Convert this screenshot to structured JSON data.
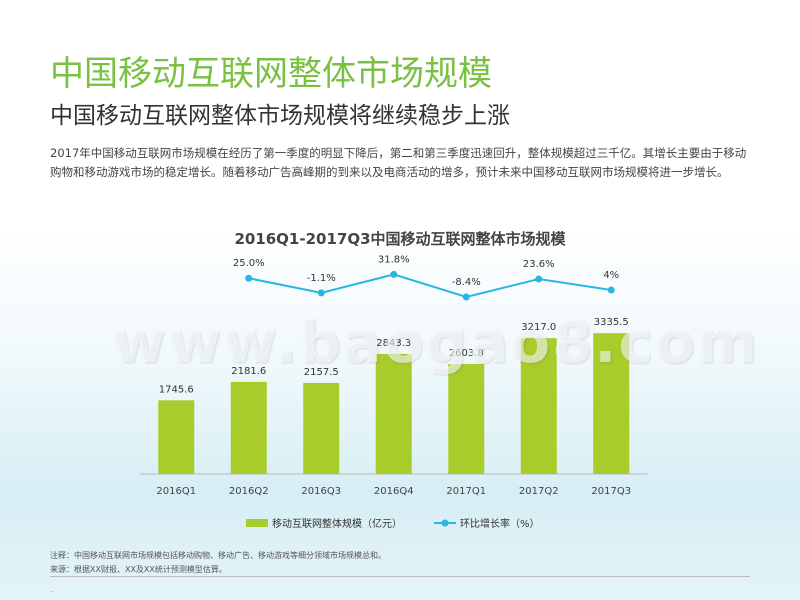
{
  "header": {
    "title": "中国移动互联网整体市场规模",
    "subtitle": "中国移动互联网整体市场规模将继续稳步上涨",
    "description": "2017年中国移动互联网市场规模在经历了第一季度的明显下降后，第二和第三季度迅速回升，整体规模超过三千亿。其增长主要由于移动购物和移动游戏市场的稳定增长。随着移动广告高峰期的到来以及电商活动的增多，预计未来中国移动互联网市场规模将进一步增长。"
  },
  "watermark": "www.baogao8.com",
  "chart_data": {
    "type": "bar+line",
    "title": "2016Q1-2017Q3中国移动互联网整体市场规模",
    "categories": [
      "2016Q1",
      "2016Q2",
      "2016Q3",
      "2016Q4",
      "2017Q1",
      "2017Q2",
      "2017Q3"
    ],
    "series": [
      {
        "name": "移动互联网整体规模（亿元）",
        "type": "bar",
        "values": [
          1745.6,
          2181.6,
          2157.5,
          2843.3,
          2603.8,
          3217.0,
          3335.5
        ],
        "labels": [
          "1745.6",
          "2181.6",
          "2157.5",
          "2843.3",
          "2603.8",
          "3217.0",
          "3335.5"
        ],
        "color": "#a8cc2c"
      },
      {
        "name": "环比增长率（%）",
        "type": "line",
        "x": [
          "2016Q2",
          "2016Q3",
          "2016Q4",
          "2017Q1",
          "2017Q2",
          "2017Q3"
        ],
        "values": [
          25.0,
          -1.1,
          31.8,
          -8.4,
          23.6,
          4.0
        ],
        "labels": [
          "25.0%",
          "-1.1%",
          "31.8%",
          "-8.4%",
          "23.6%",
          "4%"
        ],
        "color": "#29b6e2"
      }
    ],
    "bar_ylim": [
      0,
      3600
    ],
    "line_ylim": [
      -60,
      45
    ],
    "legend_placement": "bottom",
    "grid": false
  },
  "footer": {
    "note": "注释：中国移动互联网市场规模包括移动购物、移动广告、移动游戏等细分领域市场规模总和。",
    "source": "来源：根据XX财报、XX及XX统计预测模型估算。",
    "mark": "-"
  }
}
